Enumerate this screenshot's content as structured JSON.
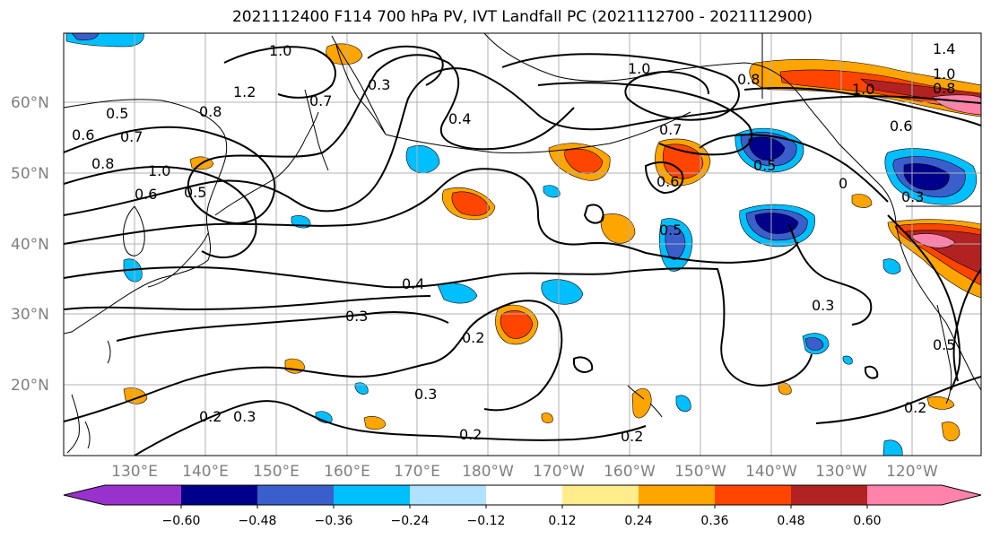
{
  "title": "2021112400 F114 700 hPa PV, IVT Landfall PC (2021112700 - 2021112900)",
  "lat_labels": [
    "60°N",
    "50°N",
    "40°N",
    "30°N",
    "20°N"
  ],
  "lon_labels": [
    "130°E",
    "140°E",
    "150°E",
    "160°E",
    "170°E",
    "180°W",
    "170°W",
    "160°W",
    "150°W",
    "140°W",
    "130°W",
    "120°W"
  ],
  "colorbar": {
    "colors": [
      "#9932cc",
      "#00008b",
      "#3a5fcd",
      "#00bfff",
      "#b0e2ff",
      "#ffffff",
      "#ffec8b",
      "#ffa500",
      "#ff4500",
      "#b22222",
      "#ff82ab"
    ],
    "ticks": [
      "−0.60",
      "−0.48",
      "−0.36",
      "−0.24",
      "−0.12",
      "0.12",
      "0.24",
      "0.36",
      "0.48",
      "0.60"
    ]
  },
  "contour_labels": [
    "1.0",
    "1.2",
    "0.8",
    "0.5",
    "0.6",
    "0.7",
    "0.8",
    "1.0",
    "0.6",
    "0.5",
    "0.7",
    "0.3",
    "0.4",
    "1.0",
    "0.7",
    "0.8",
    "1.0",
    "0.6",
    "1.4",
    "1.0",
    "0.8",
    "0.5",
    "0.6",
    "0",
    "0.5",
    "0.4",
    "0.3",
    "0.2",
    "0.3",
    "0.3",
    "0.2",
    "0.3",
    "0.2",
    "0.2",
    "0.3",
    "0.5",
    "0.2"
  ],
  "map_colors": {
    "neg_strong": "#00008b",
    "neg_med": "#3a5fcd",
    "neg_light": "#00bfff",
    "pos_light": "#ffa500",
    "pos_med": "#ff4500",
    "pos_strong": "#b22222",
    "pos_max": "#ff82ab"
  }
}
